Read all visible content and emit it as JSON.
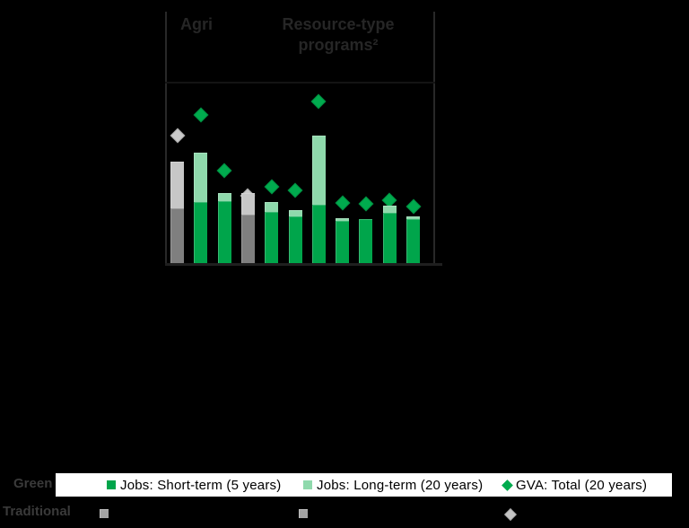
{
  "colors": {
    "background": "#000000",
    "green_short": "#00A54B",
    "green_long": "#8FD9AC",
    "green_diamond": "#00AB4E",
    "traditional_short": "#7F7F7F",
    "traditional_long": "#C7C7C7",
    "traditional_diamond": "#C9C9C9",
    "legend_gray_square": "#A3A3A3",
    "legend_gray_diamond": "#C4C4C4",
    "header_text": "#262626",
    "row_label_text": "#3A3A3A",
    "divider_line": "#282828",
    "baseline_line": "#1F1F1F",
    "header_underline": "#141414",
    "legend_strip_bg": "#FFFFFF",
    "legend_text": "#000000"
  },
  "header": {
    "group1_label": "Agri",
    "group2_label": "Resource-type programs²"
  },
  "legend": {
    "row_labels": {
      "green": "Green",
      "traditional": "Traditional"
    },
    "items": [
      {
        "marker": "short-term-square",
        "label": "Jobs: Short-term (5 years)"
      },
      {
        "marker": "long-term-square",
        "label": "Jobs: Long-term (20 years)"
      },
      {
        "marker": "gva-diamond",
        "label": "GVA: Total (20 years)"
      }
    ]
  },
  "chart_data": {
    "type": "bar",
    "subtype": "stacked-bars-with-diamond-scatter-markers",
    "title": "",
    "units": "pixel heights above baseline (chart has no visible numeric axis)",
    "grid": false,
    "group_labels": [
      "Agri",
      "Resource-type programs²"
    ],
    "series_legend": [
      "Jobs: Short-term (5 years)",
      "Jobs: Long-term (20 years)",
      "GVA: Total (20 years)"
    ],
    "bars": [
      {
        "group": "Agri",
        "palette": "traditional",
        "jobs_short_term": 61,
        "jobs_long_term": 52,
        "gva_total": 142
      },
      {
        "group": "Agri",
        "palette": "green",
        "jobs_short_term": 68,
        "jobs_long_term": 55,
        "gva_total": 165
      },
      {
        "group": "Agri",
        "palette": "green",
        "jobs_short_term": 69,
        "jobs_long_term": 9,
        "gva_total": 103
      },
      {
        "group": "Agri",
        "palette": "traditional",
        "jobs_short_term": 54,
        "jobs_long_term": 24,
        "gva_total": 75
      },
      {
        "group": "Resource-type programs²",
        "palette": "green",
        "jobs_short_term": 57,
        "jobs_long_term": 11,
        "gva_total": 85
      },
      {
        "group": "Resource-type programs²",
        "palette": "green",
        "jobs_short_term": 52,
        "jobs_long_term": 7,
        "gva_total": 81
      },
      {
        "group": "Resource-type programs²",
        "palette": "green",
        "jobs_short_term": 65,
        "jobs_long_term": 77,
        "gva_total": 180
      },
      {
        "group": "Resource-type programs²",
        "palette": "green",
        "jobs_short_term": 47,
        "jobs_long_term": 3,
        "gva_total": 67
      },
      {
        "group": "Resource-type programs²",
        "palette": "green",
        "jobs_short_term": 49,
        "jobs_long_term": 0,
        "gva_total": 66
      },
      {
        "group": "Resource-type programs²",
        "palette": "green",
        "jobs_short_term": 56,
        "jobs_long_term": 8,
        "gva_total": 70
      },
      {
        "group": "Resource-type programs²",
        "palette": "green",
        "jobs_short_term": 49,
        "jobs_long_term": 3,
        "gva_total": 63
      }
    ]
  }
}
